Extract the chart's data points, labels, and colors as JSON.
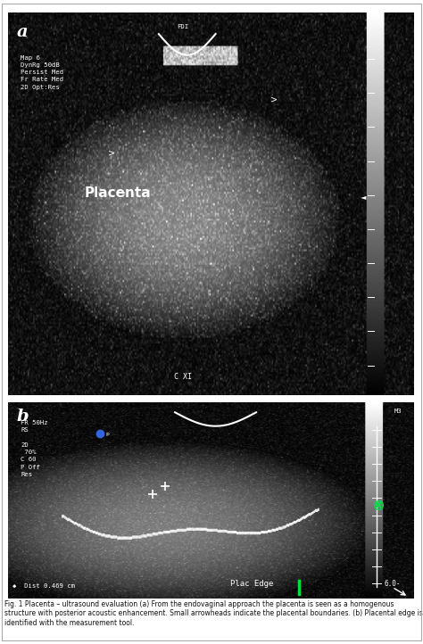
{
  "bg_color": "#ffffff",
  "panel_a": {
    "label": "a",
    "top_left_text": "Map 6\nDynRg 50dB\nPersist Med\nFr Rate Med\n2D Opt:Res",
    "top_center_text": "FDI",
    "placenta_label": "Placenta",
    "bottom_center_text": "C XI",
    "bg": "#000000"
  },
  "panel_b": {
    "label": "b",
    "top_left_text": "FR 50Hz\nRS\n\n2D\n 70%\nC 60\nP Off\nRes",
    "top_right_text": "M3",
    "bottom_label": "Plac Edge",
    "bottom_right": "6.0-",
    "bottom_left": "◆  Dist 0.469 cm",
    "bg": "#000000"
  },
  "caption": "Fig. 1 Placenta – ultrasound evaluation (a) From the endovaginal approach the placenta is seen as a homogenous structure with posterior acoustic enhancement. Small arrowheads indicate the placental boundaries. (b) Placental edge is identified with the measurement tool.",
  "outer_border_color": "#cccccc",
  "panel_border_color": "#888888"
}
